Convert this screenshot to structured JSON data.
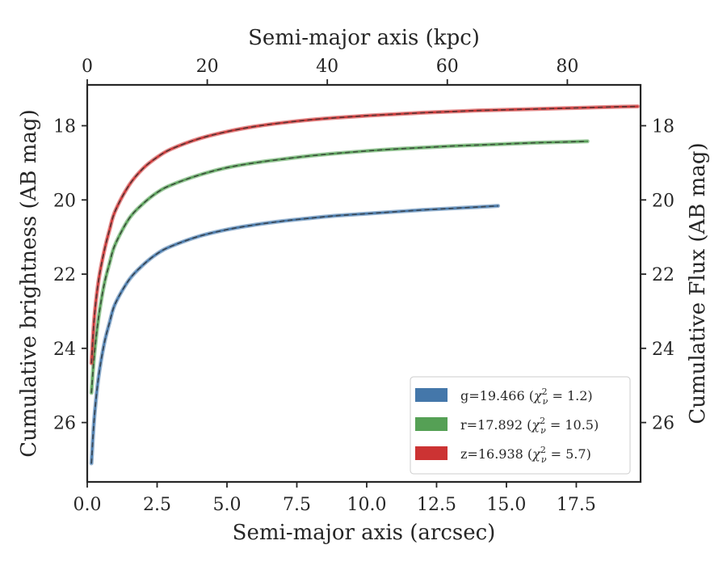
{
  "chart_data": {
    "type": "line",
    "xlabel": "Semi-major axis (arcsec)",
    "ylabel": "Cumulative brightness (AB mag)",
    "x2label": "Semi-major axis (kpc)",
    "y2label": "Cumulative Flux (AB mag)",
    "xlim": [
      0,
      19.8
    ],
    "ylim": [
      27.6,
      16.9
    ],
    "x2lim": [
      0,
      92.2
    ],
    "y_inverted": true,
    "xticks": [
      "0.0",
      "2.5",
      "5.0",
      "7.5",
      "10.0",
      "12.5",
      "15.0",
      "17.5"
    ],
    "x2ticks": [
      "0",
      "20",
      "40",
      "60",
      "80"
    ],
    "yticks": [
      "18",
      "20",
      "22",
      "24",
      "26"
    ],
    "y2ticks": [
      "18",
      "20",
      "22",
      "24",
      "26"
    ],
    "legend_position": "lower-right",
    "grid": false,
    "series": [
      {
        "name": "g=19.466 (χ²ν = 1.2)",
        "legend": {
          "prefix": "g=19.466 (",
          "chi": "χ",
          "sup": "2",
          "sub": "ν",
          "suffix": " = 1.2)"
        },
        "color": "#4477aa",
        "x": [
          0.15,
          0.25,
          0.4,
          0.6,
          0.8,
          1.0,
          1.5,
          2.0,
          2.5,
          3.0,
          4.0,
          5.0,
          6.0,
          7.0,
          8.0,
          9.0,
          10.0,
          11.0,
          12.0,
          13.0,
          14.0,
          14.7
        ],
        "y": [
          27.1,
          25.9,
          24.8,
          23.9,
          23.3,
          22.8,
          22.15,
          21.75,
          21.45,
          21.25,
          20.98,
          20.8,
          20.67,
          20.57,
          20.49,
          20.42,
          20.37,
          20.32,
          20.27,
          20.23,
          20.19,
          20.16
        ]
      },
      {
        "name": "r=17.892 (χ²ν = 10.5)",
        "legend": {
          "prefix": "r=17.892 (",
          "chi": "χ",
          "sup": "2",
          "sub": "ν",
          "suffix": " = 10.5)"
        },
        "color": "#55a055",
        "x": [
          0.15,
          0.25,
          0.4,
          0.6,
          0.8,
          1.0,
          1.5,
          2.0,
          2.5,
          3.0,
          4.0,
          5.0,
          6.0,
          7.0,
          8.0,
          9.0,
          10.0,
          11.0,
          12.0,
          13.0,
          14.0,
          15.0,
          16.0,
          17.0,
          17.9
        ],
        "y": [
          25.2,
          24.2,
          23.2,
          22.3,
          21.7,
          21.2,
          20.5,
          20.1,
          19.8,
          19.6,
          19.33,
          19.13,
          19.0,
          18.9,
          18.81,
          18.74,
          18.68,
          18.63,
          18.59,
          18.55,
          18.52,
          18.49,
          18.46,
          18.44,
          18.42
        ]
      },
      {
        "name": "z=16.938 (χ²ν = 5.7)",
        "legend": {
          "prefix": "z=16.938 (",
          "chi": "χ",
          "sup": "2",
          "sub": "ν",
          "suffix": " = 5.7)"
        },
        "color": "#cc3333",
        "x": [
          0.15,
          0.25,
          0.4,
          0.6,
          0.8,
          1.0,
          1.5,
          2.0,
          2.5,
          3.0,
          4.0,
          5.0,
          6.0,
          7.0,
          8.0,
          9.0,
          10.0,
          11.0,
          12.0,
          13.0,
          14.0,
          15.0,
          16.0,
          17.0,
          18.0,
          19.0,
          19.7
        ],
        "y": [
          24.4,
          23.2,
          22.2,
          21.4,
          20.8,
          20.3,
          19.6,
          19.15,
          18.85,
          18.63,
          18.35,
          18.16,
          18.02,
          17.92,
          17.84,
          17.78,
          17.73,
          17.69,
          17.65,
          17.62,
          17.59,
          17.57,
          17.55,
          17.53,
          17.51,
          17.49,
          17.48
        ]
      }
    ]
  }
}
